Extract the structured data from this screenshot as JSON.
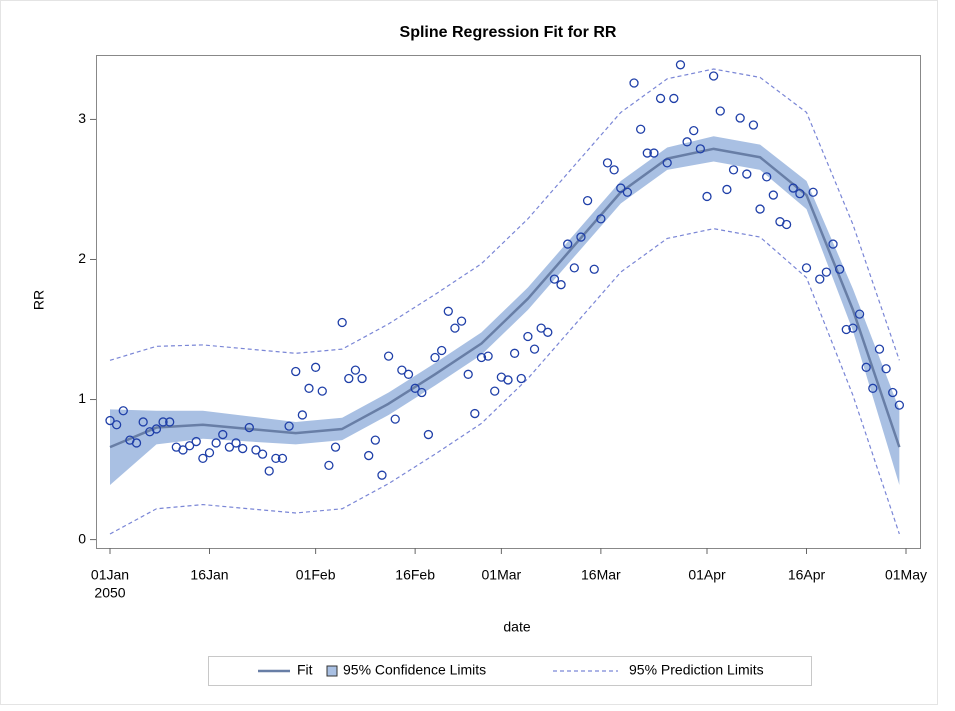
{
  "chart_data": {
    "type": "spline_fit",
    "title": "Spline Regression Fit for RR",
    "x_label": "date",
    "y_label": "RR",
    "x": [
      "2050-01-01",
      "2050-01-02",
      "2050-01-03",
      "2050-01-04",
      "2050-01-05",
      "2050-01-06",
      "2050-01-07",
      "2050-01-08",
      "2050-01-09",
      "2050-01-10",
      "2050-01-11",
      "2050-01-12",
      "2050-01-13",
      "2050-01-14",
      "2050-01-15",
      "2050-01-16",
      "2050-01-17",
      "2050-01-18",
      "2050-01-19",
      "2050-01-20",
      "2050-01-21",
      "2050-01-22",
      "2050-01-23",
      "2050-01-24",
      "2050-01-25",
      "2050-01-26",
      "2050-01-27",
      "2050-01-28",
      "2050-01-29",
      "2050-01-30",
      "2050-01-31",
      "2050-02-01",
      "2050-02-02",
      "2050-02-03",
      "2050-02-04",
      "2050-02-05",
      "2050-02-06",
      "2050-02-07",
      "2050-02-08",
      "2050-02-09",
      "2050-02-10",
      "2050-02-11",
      "2050-02-12",
      "2050-02-13",
      "2050-02-14",
      "2050-02-15",
      "2050-02-16",
      "2050-02-17",
      "2050-02-18",
      "2050-02-19",
      "2050-02-20",
      "2050-02-21",
      "2050-02-22",
      "2050-02-23",
      "2050-02-24",
      "2050-02-25",
      "2050-02-26",
      "2050-02-27",
      "2050-02-28",
      "2050-03-01",
      "2050-03-02",
      "2050-03-03",
      "2050-03-04",
      "2050-03-05",
      "2050-03-06",
      "2050-03-07",
      "2050-03-08",
      "2050-03-09",
      "2050-03-10",
      "2050-03-11",
      "2050-03-12",
      "2050-03-13",
      "2050-03-14",
      "2050-03-15",
      "2050-03-16",
      "2050-03-17",
      "2050-03-18",
      "2050-03-19",
      "2050-03-20",
      "2050-03-21",
      "2050-03-22",
      "2050-03-23",
      "2050-03-24",
      "2050-03-25",
      "2050-03-26",
      "2050-03-27",
      "2050-03-28",
      "2050-03-29",
      "2050-03-30",
      "2050-03-31",
      "2050-04-01",
      "2050-04-02",
      "2050-04-03",
      "2050-04-04",
      "2050-04-05",
      "2050-04-06",
      "2050-04-07",
      "2050-04-08",
      "2050-04-09",
      "2050-04-10",
      "2050-04-11",
      "2050-04-12",
      "2050-04-13",
      "2050-04-14",
      "2050-04-15",
      "2050-04-16",
      "2050-04-17",
      "2050-04-18",
      "2050-04-19",
      "2050-04-20",
      "2050-04-21",
      "2050-04-22",
      "2050-04-23",
      "2050-04-24",
      "2050-04-25",
      "2050-04-26",
      "2050-04-27",
      "2050-04-28",
      "2050-04-29",
      "2050-04-30"
    ],
    "values": [
      0.85,
      0.82,
      0.92,
      0.71,
      0.69,
      0.84,
      0.77,
      0.79,
      0.84,
      0.84,
      0.66,
      0.64,
      0.67,
      0.7,
      0.58,
      0.62,
      0.69,
      0.75,
      0.66,
      0.69,
      0.65,
      0.8,
      0.64,
      0.61,
      0.49,
      0.58,
      0.58,
      0.81,
      1.2,
      0.89,
      1.08,
      1.23,
      1.06,
      0.53,
      0.66,
      1.55,
      1.15,
      1.21,
      1.15,
      0.6,
      0.71,
      0.46,
      1.31,
      0.86,
      1.21,
      1.18,
      1.08,
      1.05,
      0.75,
      1.3,
      1.35,
      1.63,
      1.51,
      1.56,
      1.18,
      0.9,
      1.3,
      1.31,
      1.06,
      1.16,
      1.14,
      1.33,
      1.15,
      1.45,
      1.36,
      1.51,
      1.48,
      1.86,
      1.82,
      2.11,
      1.94,
      2.16,
      2.42,
      1.93,
      2.29,
      2.69,
      2.64,
      2.51,
      2.48,
      3.26,
      2.93,
      2.76,
      2.76,
      3.15,
      2.69,
      3.15,
      3.39,
      2.84,
      2.92,
      2.79,
      2.45,
      3.31,
      3.06,
      2.5,
      2.64,
      3.01,
      2.61,
      2.96,
      2.36,
      2.59,
      2.46,
      2.27,
      2.25,
      2.51,
      2.47,
      1.94,
      2.48,
      1.86,
      1.91,
      2.11,
      1.93,
      1.5,
      1.51,
      1.61,
      1.23,
      1.08,
      1.36,
      1.22,
      1.05,
      0.96
    ],
    "marker_color": "#1f3fa8",
    "fit_x": [
      "2050-01-01",
      "2050-01-08",
      "2050-01-15",
      "2050-01-22",
      "2050-01-29",
      "2050-02-05",
      "2050-02-12",
      "2050-02-19",
      "2050-02-26",
      "2050-03-05",
      "2050-03-12",
      "2050-03-19",
      "2050-03-26",
      "2050-04-02",
      "2050-04-09",
      "2050-04-16",
      "2050-04-23",
      "2050-04-30"
    ],
    "fit": {
      "name": "Fit",
      "color": "#687ea6",
      "values": [
        0.66,
        0.8,
        0.82,
        0.79,
        0.76,
        0.79,
        0.97,
        1.18,
        1.4,
        1.72,
        2.1,
        2.48,
        2.72,
        2.79,
        2.73,
        2.46,
        1.64,
        0.66
      ]
    },
    "confidence": {
      "name": "95% Confidence Limits",
      "color": "#a9c0e3",
      "lower": [
        0.39,
        0.68,
        0.72,
        0.7,
        0.68,
        0.71,
        0.89,
        1.1,
        1.32,
        1.64,
        2.02,
        2.4,
        2.64,
        2.7,
        2.64,
        2.36,
        1.49,
        0.39
      ],
      "upper": [
        0.93,
        0.92,
        0.92,
        0.88,
        0.84,
        0.87,
        1.05,
        1.26,
        1.48,
        1.8,
        2.18,
        2.56,
        2.8,
        2.88,
        2.82,
        2.56,
        1.79,
        0.93
      ]
    },
    "prediction": {
      "name": "95% Prediction Limits",
      "color": "#7a86d6",
      "lower": [
        0.04,
        0.22,
        0.25,
        0.22,
        0.19,
        0.22,
        0.4,
        0.61,
        0.83,
        1.15,
        1.53,
        1.91,
        2.15,
        2.22,
        2.16,
        1.87,
        1.03,
        0.04
      ],
      "upper": [
        1.28,
        1.38,
        1.39,
        1.36,
        1.33,
        1.36,
        1.54,
        1.75,
        1.97,
        2.29,
        2.67,
        3.05,
        3.29,
        3.36,
        3.3,
        3.05,
        2.25,
        1.28
      ]
    },
    "xlim": [
      "2050-01-01",
      "2050-05-01"
    ],
    "xticks": [
      {
        "value": "2050-01-01",
        "label": "01Jan"
      },
      {
        "value": "2050-01-16",
        "label": "16Jan"
      },
      {
        "value": "2050-02-01",
        "label": "01Feb"
      },
      {
        "value": "2050-02-16",
        "label": "16Feb"
      },
      {
        "value": "2050-03-01",
        "label": "01Mar"
      },
      {
        "value": "2050-03-16",
        "label": "16Mar"
      },
      {
        "value": "2050-04-01",
        "label": "01Apr"
      },
      {
        "value": "2050-04-16",
        "label": "16Apr"
      },
      {
        "value": "2050-05-01",
        "label": "01May"
      }
    ],
    "x_year": "2050",
    "ylim": [
      -0.06,
      3.46
    ],
    "yticks": [
      0,
      1,
      2,
      3
    ]
  }
}
